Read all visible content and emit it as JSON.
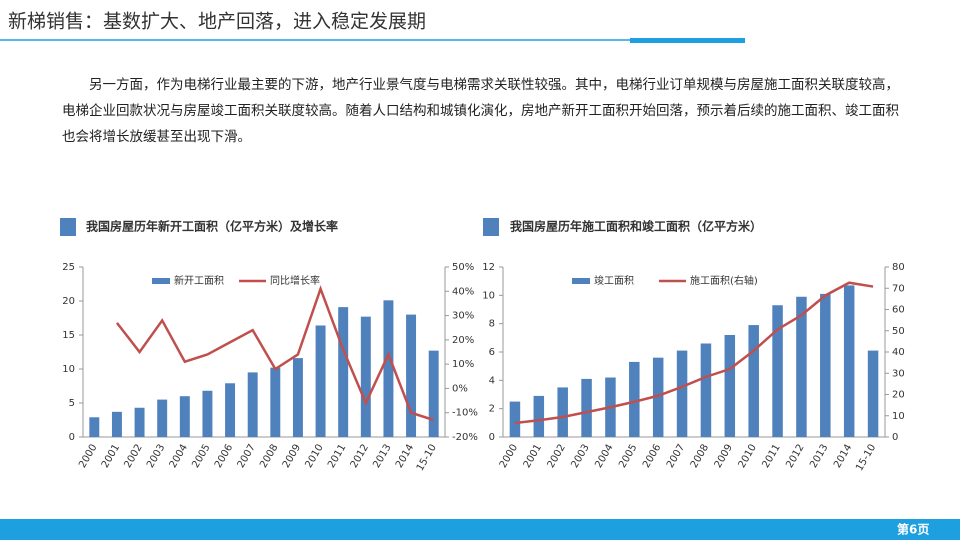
{
  "header": {
    "title": "新梯销售：基数扩大、地产回落，进入稳定发展期"
  },
  "paragraph": "另一方面，作为电梯行业最主要的下游，地产行业景气度与电梯需求关联性较强。其中，电梯行业订单规模与房屋施工面积关联度较高，电梯企业回款状况与房屋竣工面积关联度较高。随着人口结构和城镇化演化，房地产新开工面积开始回落，预示着后续的施工面积、竣工面积也会将增长放缓甚至出现下滑。",
  "footer": {
    "page": "第6页"
  },
  "chart_data": [
    {
      "type": "combo",
      "title": "我国房屋历年新开工面积（亿平方米）及增长率",
      "categories": [
        "2000",
        "2001",
        "2002",
        "2003",
        "2004",
        "2005",
        "2006",
        "2007",
        "2008",
        "2009",
        "2010",
        "2011",
        "2012",
        "2013",
        "2014",
        "15-10"
      ],
      "series": [
        {
          "name": "新开工面积",
          "type": "bar",
          "color": "#4f81bd",
          "values": [
            2.9,
            3.7,
            4.3,
            5.5,
            6.0,
            6.8,
            7.9,
            9.5,
            10.2,
            11.6,
            16.4,
            19.1,
            17.7,
            20.1,
            18.0,
            12.7
          ]
        },
        {
          "name": "同比增长率",
          "type": "line",
          "axis": "y2",
          "color": "#c0504d",
          "values": [
            null,
            27,
            15,
            28,
            11,
            14,
            19,
            24,
            8,
            14,
            41,
            16,
            -6,
            14,
            -10,
            -13
          ]
        }
      ],
      "ylim": [
        0,
        25
      ],
      "yticks": [
        0,
        5,
        10,
        15,
        20,
        25
      ],
      "y2lim": [
        -20,
        50
      ],
      "y2ticks": [
        {
          "value": -20,
          "label": "-20%"
        },
        {
          "value": -10,
          "label": "-10%"
        },
        {
          "value": 0,
          "label": "0%"
        },
        {
          "value": 10,
          "label": "10%"
        },
        {
          "value": 20,
          "label": "20%"
        },
        {
          "value": 30,
          "label": "30%"
        },
        {
          "value": 40,
          "label": "40%"
        },
        {
          "value": 50,
          "label": "50%"
        }
      ],
      "grid": false,
      "legend": "top"
    },
    {
      "type": "combo",
      "title": "我国房屋历年施工面积和竣工面积（亿平方米）",
      "categories": [
        "2000",
        "2001",
        "2002",
        "2003",
        "2004",
        "2005",
        "2006",
        "2007",
        "2008",
        "2009",
        "2010",
        "2011",
        "2012",
        "2013",
        "2014",
        "15-10"
      ],
      "series": [
        {
          "name": "竣工面积",
          "type": "bar",
          "color": "#4f81bd",
          "values": [
            2.5,
            2.9,
            3.5,
            4.1,
            4.2,
            5.3,
            5.6,
            6.1,
            6.6,
            7.2,
            7.9,
            9.3,
            9.9,
            10.1,
            10.7,
            6.1
          ]
        },
        {
          "name": "施工面积(右轴)",
          "type": "line",
          "axis": "y2",
          "color": "#c0504d",
          "values": [
            6.6,
            7.9,
            9.4,
            11.7,
            14.0,
            16.6,
            19.4,
            23.6,
            28.3,
            32.0,
            40.6,
            50.6,
            57.3,
            66.6,
            72.6,
            70.8
          ]
        }
      ],
      "ylim": [
        0,
        12
      ],
      "yticks": [
        0,
        2,
        4,
        6,
        8,
        10,
        12
      ],
      "y2lim": [
        0,
        80
      ],
      "y2ticks": [
        0,
        10,
        20,
        30,
        40,
        50,
        60,
        70,
        80
      ],
      "grid": false,
      "legend": "top"
    }
  ]
}
